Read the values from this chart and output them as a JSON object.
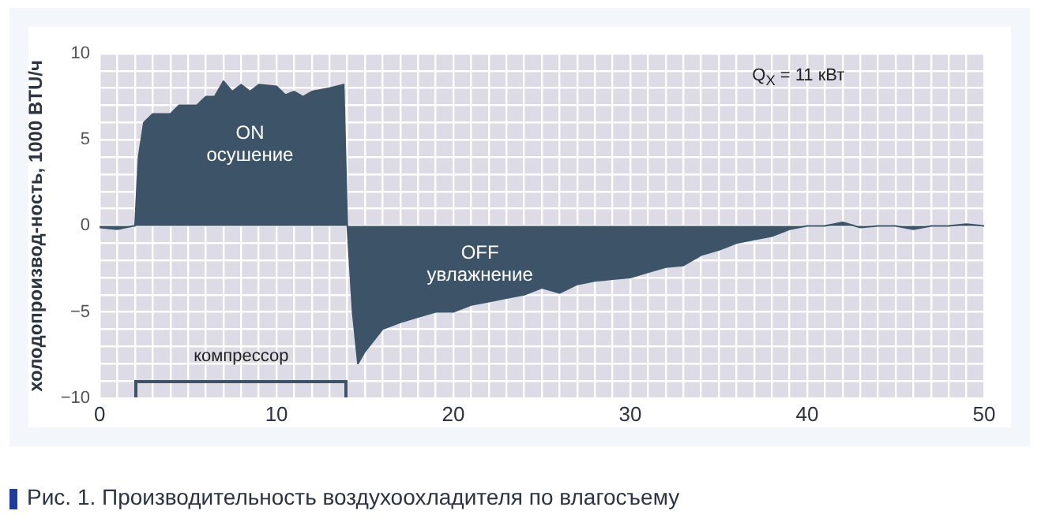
{
  "chart_data": {
    "type": "area",
    "ylabel": "холодопроизвод-ность, 1000 BTU/ч",
    "x": [
      0,
      1,
      1.9,
      2,
      2.2,
      2.5,
      3,
      4,
      4.5,
      5.5,
      6,
      6.5,
      7,
      7.5,
      8,
      8.5,
      9,
      10,
      10.5,
      11,
      11.5,
      12,
      13,
      13.8,
      14,
      14.3,
      14.6,
      15,
      16,
      17,
      18,
      19,
      20,
      21,
      22,
      23,
      24,
      25,
      26,
      27,
      28,
      29,
      30,
      31,
      32,
      33,
      34,
      35,
      36,
      37,
      38,
      39,
      40,
      41,
      42,
      43,
      44,
      45,
      46,
      47,
      48,
      49,
      50
    ],
    "series": [
      {
        "color": "#3d5468",
        "values": [
          -0.1,
          -0.2,
          0,
          0,
          4,
          6,
          6.5,
          6.5,
          7,
          7,
          7.5,
          7.5,
          8.4,
          7.8,
          8.2,
          7.8,
          8.2,
          8.1,
          7.6,
          7.8,
          7.5,
          7.8,
          8,
          8.2,
          0,
          -5,
          -8,
          -7.3,
          -6,
          -5.6,
          -5.3,
          -5,
          -5,
          -4.6,
          -4.4,
          -4.2,
          -4,
          -3.6,
          -3.9,
          -3.4,
          -3.2,
          -3.1,
          -3,
          -2.7,
          -2.4,
          -2.3,
          -1.7,
          -1.4,
          -1,
          -0.8,
          -0.6,
          -0.2,
          0,
          0,
          0.2,
          -0.1,
          0,
          0,
          -0.2,
          0,
          0,
          0.1,
          0
        ]
      }
    ],
    "xlim": [
      0,
      50
    ],
    "xticks": [
      0,
      {
        "value": 1,
        "label": null
      },
      {
        "value": 2,
        "label": null
      },
      {
        "value": 3,
        "label": null
      },
      {
        "value": 4,
        "label": null
      },
      {
        "value": 5,
        "label": null
      },
      {
        "value": 6,
        "label": null
      },
      {
        "value": 7,
        "label": null
      },
      {
        "value": 8,
        "label": null
      },
      {
        "value": 9,
        "label": null
      },
      10,
      {
        "value": 11,
        "label": null
      },
      {
        "value": 12,
        "label": null
      },
      {
        "value": 13,
        "label": null
      },
      {
        "value": 14,
        "label": null
      },
      {
        "value": 15,
        "label": null
      },
      {
        "value": 16,
        "label": null
      },
      {
        "value": 17,
        "label": null
      },
      {
        "value": 18,
        "label": null
      },
      {
        "value": 19,
        "label": null
      },
      20,
      {
        "value": 21,
        "label": null
      },
      {
        "value": 22,
        "label": null
      },
      {
        "value": 23,
        "label": null
      },
      {
        "value": 24,
        "label": null
      },
      {
        "value": 25,
        "label": null
      },
      {
        "value": 26,
        "label": null
      },
      {
        "value": 27,
        "label": null
      },
      {
        "value": 28,
        "label": null
      },
      {
        "value": 29,
        "label": null
      },
      30,
      {
        "value": 31,
        "label": null
      },
      {
        "value": 32,
        "label": null
      },
      {
        "value": 33,
        "label": null
      },
      {
        "value": 34,
        "label": null
      },
      {
        "value": 35,
        "label": null
      },
      {
        "value": 36,
        "label": null
      },
      {
        "value": 37,
        "label": null
      },
      {
        "value": 38,
        "label": null
      },
      {
        "value": 39,
        "label": null
      },
      40,
      {
        "value": 41,
        "label": null
      },
      {
        "value": 42,
        "label": null
      },
      {
        "value": 43,
        "label": null
      },
      {
        "value": 44,
        "label": null
      },
      {
        "value": 45,
        "label": null
      },
      {
        "value": 46,
        "label": null
      },
      {
        "value": 47,
        "label": null
      },
      {
        "value": 48,
        "label": null
      },
      {
        "value": 49,
        "label": null
      },
      50
    ],
    "ylim": [
      -10,
      10
    ],
    "yticks": [
      {
        "value": -10,
        "label": "−10"
      },
      {
        "value": -9,
        "label": null
      },
      {
        "value": -8,
        "label": null
      },
      {
        "value": -7,
        "label": null
      },
      {
        "value": -6,
        "label": null
      },
      {
        "value": -5,
        "label": "−5"
      },
      {
        "value": -4,
        "label": null
      },
      {
        "value": -3,
        "label": null
      },
      {
        "value": -2,
        "label": null
      },
      {
        "value": -1,
        "label": null
      },
      0,
      {
        "value": 1,
        "label": null
      },
      {
        "value": 2,
        "label": null
      },
      {
        "value": 3,
        "label": null
      },
      {
        "value": 4,
        "label": null
      },
      5,
      {
        "value": 6,
        "label": null
      },
      {
        "value": 7,
        "label": null
      },
      {
        "value": 8,
        "label": null
      },
      {
        "value": 9,
        "label": null
      },
      10
    ],
    "grid": true,
    "annotations": [
      "ON\nосушение",
      "OFF\nувлажнение",
      "компрессор",
      "Q$_{X}$ = 11 кВт",
      "Рис. 1. Производительность воздухоохладителя по влагосъему"
    ]
  }
}
